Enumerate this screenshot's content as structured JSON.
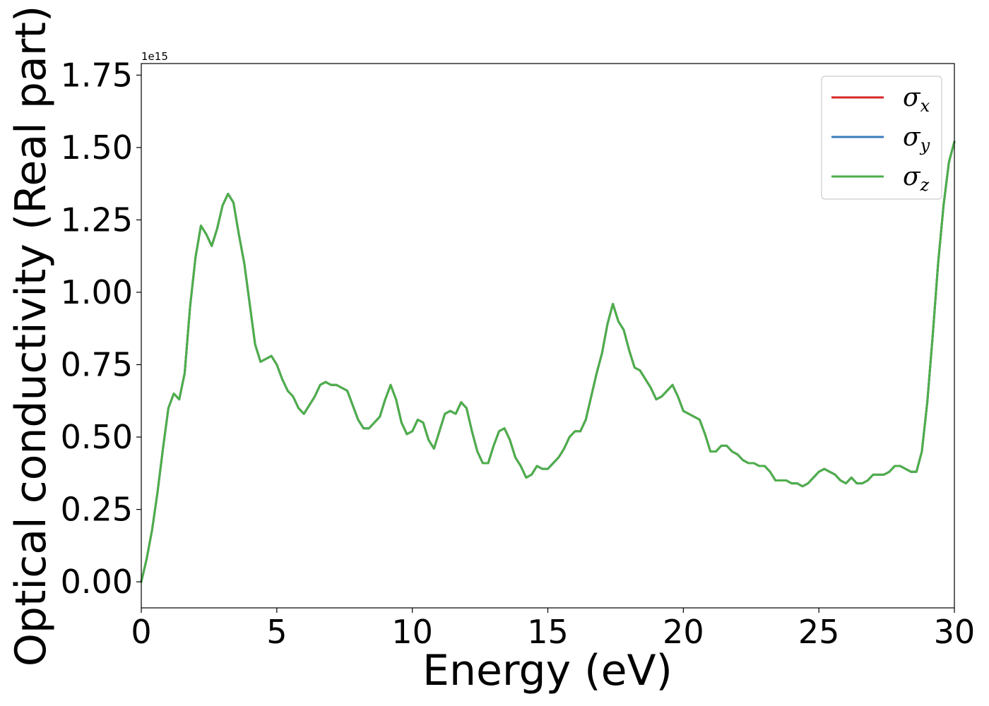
{
  "chart_data": {
    "type": "line",
    "title": "",
    "xlabel": "Energy (eV)",
    "ylabel": "Optical conductivity (Real part)",
    "y_offset_text": "1e15",
    "xlim": [
      0,
      30
    ],
    "ylim": [
      -0.09,
      1.79
    ],
    "y_scale": 1000000000000000.0,
    "xticks": [
      0,
      5,
      10,
      15,
      20,
      25,
      30
    ],
    "xtick_labels": [
      "0",
      "5",
      "10",
      "15",
      "20",
      "25",
      "30"
    ],
    "yticks": [
      0.0,
      0.25,
      0.5,
      0.75,
      1.0,
      1.25,
      1.5,
      1.75
    ],
    "ytick_labels": [
      "0.00",
      "0.25",
      "0.50",
      "0.75",
      "1.00",
      "1.25",
      "1.50",
      "1.75"
    ],
    "grid": false,
    "legend_position": "top-right",
    "x": [
      0.0,
      0.2,
      0.4,
      0.6,
      0.8,
      1.0,
      1.2,
      1.4,
      1.6,
      1.8,
      2.0,
      2.2,
      2.4,
      2.6,
      2.8,
      3.0,
      3.2,
      3.4,
      3.6,
      3.8,
      4.0,
      4.2,
      4.4,
      4.6,
      4.8,
      5.0,
      5.2,
      5.4,
      5.6,
      5.8,
      6.0,
      6.2,
      6.4,
      6.6,
      6.8,
      7.0,
      7.2,
      7.4,
      7.6,
      7.8,
      8.0,
      8.2,
      8.4,
      8.6,
      8.8,
      9.0,
      9.2,
      9.4,
      9.6,
      9.8,
      10.0,
      10.2,
      10.4,
      10.6,
      10.8,
      11.0,
      11.2,
      11.4,
      11.6,
      11.8,
      12.0,
      12.2,
      12.4,
      12.6,
      12.8,
      13.0,
      13.2,
      13.4,
      13.6,
      13.8,
      14.0,
      14.2,
      14.4,
      14.6,
      14.8,
      15.0,
      15.2,
      15.4,
      15.6,
      15.8,
      16.0,
      16.2,
      16.4,
      16.6,
      16.8,
      17.0,
      17.2,
      17.4,
      17.6,
      17.8,
      18.0,
      18.2,
      18.4,
      18.6,
      18.8,
      19.0,
      19.2,
      19.4,
      19.6,
      19.8,
      20.0,
      20.2,
      20.4,
      20.6,
      20.8,
      21.0,
      21.2,
      21.4,
      21.6,
      21.8,
      22.0,
      22.2,
      22.4,
      22.6,
      22.8,
      23.0,
      23.2,
      23.4,
      23.6,
      23.8,
      24.0,
      24.2,
      24.4,
      24.6,
      24.8,
      25.0,
      25.2,
      25.4,
      25.6,
      25.8,
      26.0,
      26.2,
      26.4,
      26.6,
      26.8,
      27.0,
      27.2,
      27.4,
      27.6,
      27.8,
      28.0,
      28.2,
      28.4,
      28.6,
      28.8,
      29.0,
      29.2,
      29.4,
      29.6,
      29.8,
      30.0
    ],
    "series": [
      {
        "name": "σx",
        "legend_symbol": "σ",
        "legend_subscript": "x",
        "color": "#d62728",
        "values": [
          0.0,
          0.08,
          0.18,
          0.31,
          0.46,
          0.6,
          0.65,
          0.63,
          0.72,
          0.95,
          1.12,
          1.23,
          1.2,
          1.16,
          1.22,
          1.3,
          1.34,
          1.31,
          1.2,
          1.1,
          0.96,
          0.82,
          0.76,
          0.77,
          0.78,
          0.75,
          0.7,
          0.66,
          0.64,
          0.6,
          0.58,
          0.61,
          0.64,
          0.68,
          0.69,
          0.68,
          0.68,
          0.67,
          0.66,
          0.61,
          0.56,
          0.53,
          0.53,
          0.55,
          0.57,
          0.63,
          0.68,
          0.63,
          0.55,
          0.51,
          0.52,
          0.56,
          0.55,
          0.49,
          0.46,
          0.52,
          0.58,
          0.59,
          0.58,
          0.62,
          0.6,
          0.52,
          0.45,
          0.41,
          0.41,
          0.47,
          0.52,
          0.53,
          0.49,
          0.43,
          0.4,
          0.36,
          0.37,
          0.4,
          0.39,
          0.39,
          0.41,
          0.43,
          0.46,
          0.5,
          0.52,
          0.52,
          0.56,
          0.64,
          0.72,
          0.79,
          0.89,
          0.96,
          0.9,
          0.87,
          0.8,
          0.74,
          0.73,
          0.7,
          0.67,
          0.63,
          0.64,
          0.66,
          0.68,
          0.64,
          0.59,
          0.58,
          0.57,
          0.56,
          0.51,
          0.45,
          0.45,
          0.47,
          0.47,
          0.45,
          0.44,
          0.42,
          0.41,
          0.41,
          0.4,
          0.4,
          0.38,
          0.35,
          0.35,
          0.35,
          0.34,
          0.34,
          0.33,
          0.34,
          0.36,
          0.38,
          0.39,
          0.38,
          0.37,
          0.35,
          0.34,
          0.36,
          0.34,
          0.34,
          0.35,
          0.37,
          0.37,
          0.37,
          0.38,
          0.4,
          0.4,
          0.39,
          0.38,
          0.38,
          0.45,
          0.62,
          0.85,
          1.1,
          1.3,
          1.45,
          1.52
        ]
      },
      {
        "name": "σy",
        "legend_symbol": "σ",
        "legend_subscript": "y",
        "color": "#3a7cbd",
        "values": [
          0.0,
          0.08,
          0.18,
          0.31,
          0.46,
          0.6,
          0.65,
          0.63,
          0.72,
          0.95,
          1.12,
          1.23,
          1.2,
          1.16,
          1.22,
          1.3,
          1.34,
          1.31,
          1.2,
          1.1,
          0.96,
          0.82,
          0.76,
          0.77,
          0.78,
          0.75,
          0.7,
          0.66,
          0.64,
          0.6,
          0.58,
          0.61,
          0.64,
          0.68,
          0.69,
          0.68,
          0.68,
          0.67,
          0.66,
          0.61,
          0.56,
          0.53,
          0.53,
          0.55,
          0.57,
          0.63,
          0.68,
          0.63,
          0.55,
          0.51,
          0.52,
          0.56,
          0.55,
          0.49,
          0.46,
          0.52,
          0.58,
          0.59,
          0.58,
          0.62,
          0.6,
          0.52,
          0.45,
          0.41,
          0.41,
          0.47,
          0.52,
          0.53,
          0.49,
          0.43,
          0.4,
          0.36,
          0.37,
          0.4,
          0.39,
          0.39,
          0.41,
          0.43,
          0.46,
          0.5,
          0.52,
          0.52,
          0.56,
          0.64,
          0.72,
          0.79,
          0.89,
          0.96,
          0.9,
          0.87,
          0.8,
          0.74,
          0.73,
          0.7,
          0.67,
          0.63,
          0.64,
          0.66,
          0.68,
          0.64,
          0.59,
          0.58,
          0.57,
          0.56,
          0.51,
          0.45,
          0.45,
          0.47,
          0.47,
          0.45,
          0.44,
          0.42,
          0.41,
          0.41,
          0.4,
          0.4,
          0.38,
          0.35,
          0.35,
          0.35,
          0.34,
          0.34,
          0.33,
          0.34,
          0.36,
          0.38,
          0.39,
          0.38,
          0.37,
          0.35,
          0.34,
          0.36,
          0.34,
          0.34,
          0.35,
          0.37,
          0.37,
          0.37,
          0.38,
          0.4,
          0.4,
          0.39,
          0.38,
          0.38,
          0.45,
          0.62,
          0.85,
          1.1,
          1.3,
          1.45,
          1.52
        ]
      },
      {
        "name": "σz",
        "legend_symbol": "σ",
        "legend_subscript": "z",
        "color": "#4daf4a",
        "values": [
          0.0,
          0.08,
          0.18,
          0.31,
          0.46,
          0.6,
          0.65,
          0.63,
          0.72,
          0.95,
          1.12,
          1.23,
          1.2,
          1.16,
          1.22,
          1.3,
          1.34,
          1.31,
          1.2,
          1.1,
          0.96,
          0.82,
          0.76,
          0.77,
          0.78,
          0.75,
          0.7,
          0.66,
          0.64,
          0.6,
          0.58,
          0.61,
          0.64,
          0.68,
          0.69,
          0.68,
          0.68,
          0.67,
          0.66,
          0.61,
          0.56,
          0.53,
          0.53,
          0.55,
          0.57,
          0.63,
          0.68,
          0.63,
          0.55,
          0.51,
          0.52,
          0.56,
          0.55,
          0.49,
          0.46,
          0.52,
          0.58,
          0.59,
          0.58,
          0.62,
          0.6,
          0.52,
          0.45,
          0.41,
          0.41,
          0.47,
          0.52,
          0.53,
          0.49,
          0.43,
          0.4,
          0.36,
          0.37,
          0.4,
          0.39,
          0.39,
          0.41,
          0.43,
          0.46,
          0.5,
          0.52,
          0.52,
          0.56,
          0.64,
          0.72,
          0.79,
          0.89,
          0.96,
          0.9,
          0.87,
          0.8,
          0.74,
          0.73,
          0.7,
          0.67,
          0.63,
          0.64,
          0.66,
          0.68,
          0.64,
          0.59,
          0.58,
          0.57,
          0.56,
          0.51,
          0.45,
          0.45,
          0.47,
          0.47,
          0.45,
          0.44,
          0.42,
          0.41,
          0.41,
          0.4,
          0.4,
          0.38,
          0.35,
          0.35,
          0.35,
          0.34,
          0.34,
          0.33,
          0.34,
          0.36,
          0.38,
          0.39,
          0.38,
          0.37,
          0.35,
          0.34,
          0.36,
          0.34,
          0.34,
          0.35,
          0.37,
          0.37,
          0.37,
          0.38,
          0.4,
          0.4,
          0.39,
          0.38,
          0.38,
          0.45,
          0.62,
          0.85,
          1.1,
          1.3,
          1.45,
          1.52
        ]
      }
    ]
  }
}
